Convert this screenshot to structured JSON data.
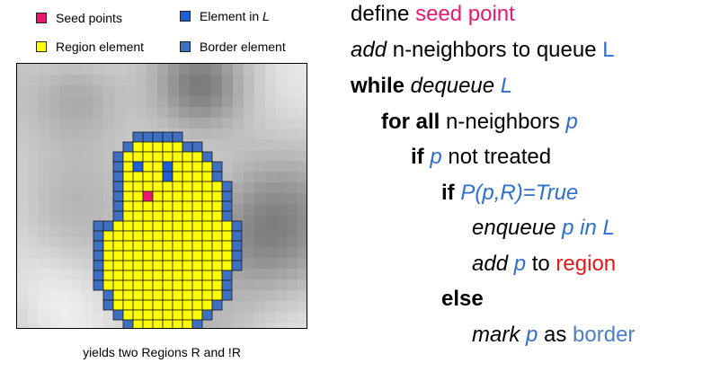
{
  "legend": {
    "seed_label": "Seed points",
    "region_label": "Region element",
    "queue_label_pre": "Element in ",
    "queue_label_var": "L",
    "border_label": "Border element"
  },
  "colors": {
    "seed": "#e8176f",
    "region": "#ffff00",
    "queue": "#1f5fd6",
    "border": "#3f6fc0",
    "cell_outline": "#1a1a1a"
  },
  "caption": "yields two Regions R and !R",
  "algorithm": {
    "l1_text": "define ",
    "l1_term": "seed point",
    "l2_kw": "add",
    "l2_text": " n-neighbors to queue ",
    "l2_var": "L",
    "l3_kw": "while",
    "l3_op": " dequeue ",
    "l3_var": "L",
    "l4_kw": "for all",
    "l4_text": " n-neighbors ",
    "l4_var": "p",
    "l5_kw": "if",
    "l5_var": " p",
    "l5_text": " not treated",
    "l6_kw": "if",
    "l6_expr": " P(p,R)=True",
    "l7_op": "enqueue",
    "l7_expr": " p in L",
    "l8_kw": "add",
    "l8_var": " p",
    "l8_text": " to ",
    "l8_term": "region",
    "l9_kw": "else",
    "l10_kw": "mark",
    "l10_var": " p",
    "l10_text": " as ",
    "l10_term": "border"
  }
}
